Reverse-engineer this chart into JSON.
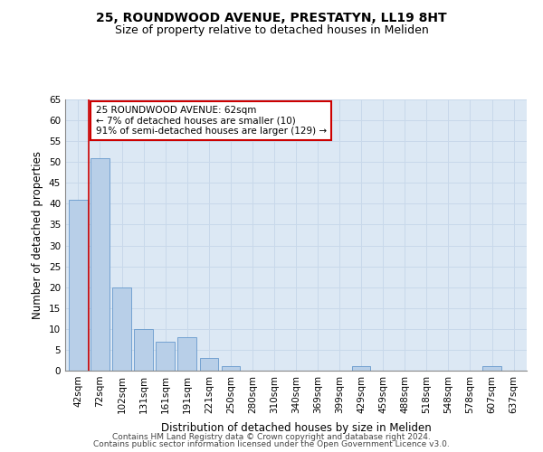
{
  "title_line1": "25, ROUNDWOOD AVENUE, PRESTATYN, LL19 8HT",
  "title_line2": "Size of property relative to detached houses in Meliden",
  "xlabel": "Distribution of detached houses by size in Meliden",
  "ylabel": "Number of detached properties",
  "categories": [
    "42sqm",
    "72sqm",
    "102sqm",
    "131sqm",
    "161sqm",
    "191sqm",
    "221sqm",
    "250sqm",
    "280sqm",
    "310sqm",
    "340sqm",
    "369sqm",
    "399sqm",
    "429sqm",
    "459sqm",
    "488sqm",
    "518sqm",
    "548sqm",
    "578sqm",
    "607sqm",
    "637sqm"
  ],
  "values": [
    41,
    51,
    20,
    10,
    7,
    8,
    3,
    1,
    0,
    0,
    0,
    0,
    0,
    1,
    0,
    0,
    0,
    0,
    0,
    1,
    0
  ],
  "bar_color": "#b8cfe8",
  "bar_edge_color": "#6699cc",
  "marker_color": "#cc0000",
  "annotation_text": "25 ROUNDWOOD AVENUE: 62sqm\n← 7% of detached houses are smaller (10)\n91% of semi-detached houses are larger (129) →",
  "annotation_box_edge": "#cc0000",
  "ylim": [
    0,
    65
  ],
  "yticks": [
    0,
    5,
    10,
    15,
    20,
    25,
    30,
    35,
    40,
    45,
    50,
    55,
    60,
    65
  ],
  "grid_color": "#c8d8ea",
  "bg_color": "#dce8f4",
  "footer_line1": "Contains HM Land Registry data © Crown copyright and database right 2024.",
  "footer_line2": "Contains public sector information licensed under the Open Government Licence v3.0.",
  "title_fontsize": 10,
  "subtitle_fontsize": 9,
  "axis_label_fontsize": 8.5,
  "tick_fontsize": 7.5,
  "annotation_fontsize": 7.5,
  "footer_fontsize": 6.5
}
